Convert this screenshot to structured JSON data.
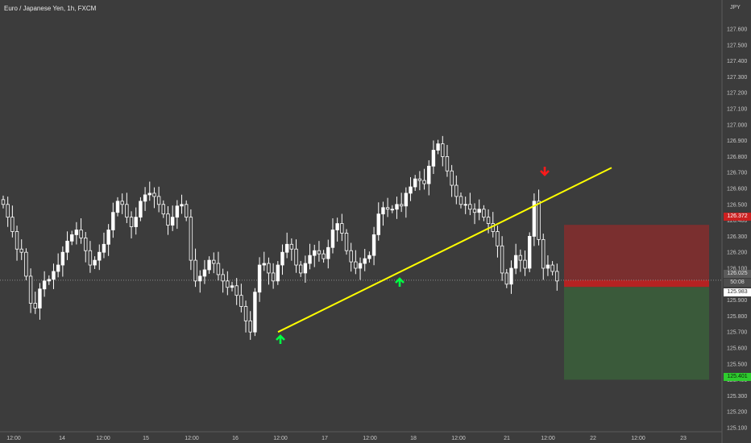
{
  "header": {
    "title": "Euro / Japanese Yen, 1h, FXCM",
    "currency": "JPY"
  },
  "price_axis": {
    "labels": [
      "127.600",
      "127.500",
      "127.400",
      "127.300",
      "127.200",
      "127.100",
      "127.000",
      "126.900",
      "126.800",
      "126.700",
      "126.600",
      "126.500",
      "126.400",
      "126.300",
      "126.200",
      "126.100",
      "126.000",
      "125.900",
      "125.800",
      "125.700",
      "125.600",
      "125.500",
      "125.400",
      "125.300",
      "125.200",
      "125.100"
    ]
  },
  "time_axis": {
    "labels": [
      "12:00",
      "14",
      "12:00",
      "15",
      "12:00",
      "16",
      "12:00",
      "17",
      "12:00",
      "18",
      "12:00",
      "21",
      "12:00",
      "22",
      "12:00",
      "23"
    ]
  },
  "badges": {
    "stop": "126.372",
    "current_price": "126.025",
    "countdown": "50:08",
    "entry": "125.983",
    "target": "125.401"
  },
  "chart_data": {
    "type": "candlestick",
    "symbol": "Euro / Japanese Yen, 1h, FXCM",
    "currency": "JPY",
    "price_range": [
      125.1,
      127.68
    ],
    "current_price": 126.025,
    "candles_close": [
      126.5,
      126.42,
      126.33,
      126.22,
      126.2,
      126.05,
      125.88,
      125.85,
      125.97,
      126.02,
      126.03,
      126.08,
      126.12,
      126.2,
      126.27,
      126.31,
      126.34,
      126.29,
      126.21,
      126.12,
      126.15,
      126.2,
      126.25,
      126.34,
      126.45,
      126.52,
      126.5,
      126.42,
      126.36,
      126.42,
      126.52,
      126.56,
      126.57,
      126.55,
      126.5,
      126.44,
      126.37,
      126.42,
      126.49,
      126.5,
      126.42,
      126.15,
      126.02,
      126.05,
      126.09,
      126.15,
      126.13,
      126.06,
      126.02,
      125.98,
      125.99,
      125.93,
      125.86,
      125.77,
      125.7,
      125.95,
      126.12,
      126.13,
      126.07,
      126.02,
      126.12,
      126.2,
      126.25,
      126.22,
      126.12,
      126.07,
      126.13,
      126.18,
      126.21,
      126.19,
      126.16,
      126.23,
      126.34,
      126.38,
      126.32,
      126.21,
      126.14,
      126.1,
      126.13,
      126.16,
      126.18,
      126.31,
      126.44,
      126.48,
      126.47,
      126.47,
      126.5,
      126.49,
      126.57,
      126.61,
      126.66,
      126.65,
      126.63,
      126.74,
      126.84,
      126.88,
      126.8,
      126.71,
      126.62,
      126.55,
      126.5,
      126.5,
      126.47,
      126.45,
      126.47,
      126.42,
      126.38,
      126.33,
      126.24,
      126.07,
      126.0,
      126.1,
      126.18,
      126.15,
      126.1,
      126.3,
      126.52,
      126.28,
      126.1,
      126.12,
      126.08,
      126.02
    ],
    "trendline": {
      "from": 125.7,
      "to": 126.73,
      "color": "#ffff00"
    },
    "position": {
      "type": "short",
      "entry": 125.983,
      "stop": 126.372,
      "target": 125.401
    },
    "signals": [
      {
        "type": "buy",
        "color": "#00ff44"
      },
      {
        "type": "buy",
        "color": "#00ff44"
      },
      {
        "type": "sell",
        "color": "#ff1a1a"
      }
    ],
    "grid": false
  }
}
